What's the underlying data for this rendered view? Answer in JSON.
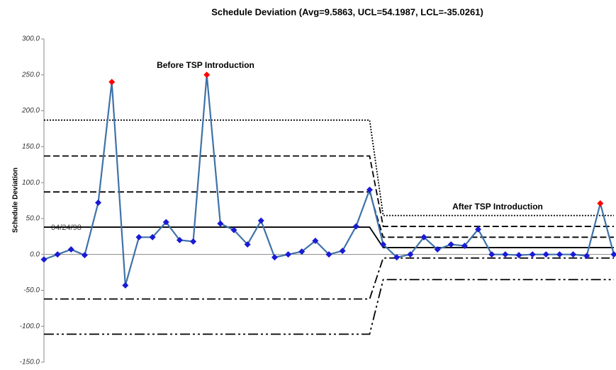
{
  "chart_data": {
    "type": "line",
    "title": "Schedule Deviation (Avg=9.5863, UCL=54.1987, LCL=-35.0261)",
    "y_label": "Schedule Deviation",
    "annotations": [
      "Before TSP Introduction",
      "After TSP Introduction",
      "04/24/98"
    ],
    "categories": [
      null,
      null,
      null,
      null,
      null,
      null,
      null,
      null,
      null,
      null,
      null,
      null,
      null,
      null,
      null,
      null,
      null,
      null,
      null,
      null,
      null,
      null,
      null,
      null,
      null,
      null,
      null,
      null,
      null,
      null,
      null,
      null,
      null,
      null,
      null,
      null,
      null,
      null,
      null,
      null,
      null,
      null,
      null
    ],
    "values": [
      -7,
      0,
      7,
      -1,
      72,
      240,
      -43,
      24,
      24,
      45,
      20,
      18,
      250,
      43,
      34,
      14,
      47,
      -4,
      0,
      4,
      19,
      0,
      5,
      39,
      90,
      14,
      -4,
      0,
      24,
      7,
      14,
      12,
      35,
      0,
      0,
      -1,
      0,
      0,
      0,
      0,
      -2,
      71,
      0
    ],
    "color": "#3f72a8",
    "marker_colors": [
      "#1a1ad6",
      "#1a1ad6",
      "#1a1ad6",
      "#1a1ad6",
      "#1a1ad6",
      "#ff0000",
      "#1a1ad6",
      "#1a1ad6",
      "#1a1ad6",
      "#1a1ad6",
      "#1a1ad6",
      "#1a1ad6",
      "#ff0000",
      "#1a1ad6",
      "#1a1ad6",
      "#1a1ad6",
      "#1a1ad6",
      "#1a1ad6",
      "#1a1ad6",
      "#1a1ad6",
      "#1a1ad6",
      "#1a1ad6",
      "#1a1ad6",
      "#1a1ad6",
      "#1a1ad6",
      "#1a1ad6",
      "#1a1ad6",
      "#1a1ad6",
      "#1a1ad6",
      "#1a1ad6",
      "#1a1ad6",
      "#1a1ad6",
      "#1a1ad6",
      "#1a1ad6",
      "#1a1ad6",
      "#1a1ad6",
      "#1a1ad6",
      "#1a1ad6",
      "#1a1ad6",
      "#1a1ad6",
      "#1a1ad6",
      "#ff0000",
      "#1a1ad6"
    ],
    "limits": [
      {
        "dash": "dotted",
        "values": [
          187,
          187,
          187,
          187,
          187,
          187,
          187,
          187,
          187,
          187,
          187,
          187,
          187,
          187,
          187,
          187,
          187,
          187,
          187,
          187,
          187,
          187,
          187,
          187,
          187,
          54.1987,
          54.1987,
          54.1987,
          54.1987,
          54.1987,
          54.1987,
          54.1987,
          54.1987,
          54.1987,
          54.1987,
          54.1987,
          54.1987,
          54.1987,
          54.1987,
          54.1987,
          54.1987,
          54.1987,
          54.1987
        ]
      },
      {
        "dash": "dashed",
        "values": [
          137,
          137,
          137,
          137,
          137,
          137,
          137,
          137,
          137,
          137,
          137,
          137,
          137,
          137,
          137,
          137,
          137,
          137,
          137,
          137,
          137,
          137,
          137,
          137,
          137,
          39,
          39,
          39,
          39,
          39,
          39,
          39,
          39,
          39,
          39,
          39,
          39,
          39,
          39,
          39,
          39,
          39,
          39
        ]
      },
      {
        "dash": "dashed",
        "values": [
          87,
          87,
          87,
          87,
          87,
          87,
          87,
          87,
          87,
          87,
          87,
          87,
          87,
          87,
          87,
          87,
          87,
          87,
          87,
          87,
          87,
          87,
          87,
          87,
          87,
          24,
          24,
          24,
          24,
          24,
          24,
          24,
          24,
          24,
          24,
          24,
          24,
          24,
          24,
          24,
          24,
          24,
          24
        ]
      },
      {
        "dash": "solid",
        "values": [
          38,
          38,
          38,
          38,
          38,
          38,
          38,
          38,
          38,
          38,
          38,
          38,
          38,
          38,
          38,
          38,
          38,
          38,
          38,
          38,
          38,
          38,
          38,
          38,
          38,
          9.5863,
          9.5863,
          9.5863,
          9.5863,
          9.5863,
          9.5863,
          9.5863,
          9.5863,
          9.5863,
          9.5863,
          9.5863,
          9.5863,
          9.5863,
          9.5863,
          9.5863,
          9.5863,
          9.5863,
          9.5863
        ]
      },
      {
        "dash": "dashdot",
        "values": [
          -62,
          -62,
          -62,
          -62,
          -62,
          -62,
          -62,
          -62,
          -62,
          -62,
          -62,
          -62,
          -62,
          -62,
          -62,
          -62,
          -62,
          -62,
          -62,
          -62,
          -62,
          -62,
          -62,
          -62,
          -62,
          -5,
          -5,
          -5,
          -5,
          -5,
          -5,
          -5,
          -5,
          -5,
          -5,
          -5,
          -5,
          -5,
          -5,
          -5,
          -5,
          -5,
          -5
        ]
      },
      {
        "dash": "dashdotdot",
        "values": [
          -111,
          -111,
          -111,
          -111,
          -111,
          -111,
          -111,
          -111,
          -111,
          -111,
          -111,
          -111,
          -111,
          -111,
          -111,
          -111,
          -111,
          -111,
          -111,
          -111,
          -111,
          -111,
          -111,
          -111,
          -111,
          -35.0261,
          -35.0261,
          -35.0261,
          -35.0261,
          -35.0261,
          -35.0261,
          -35.0261,
          -35.0261,
          -35.0261,
          -35.0261,
          -35.0261,
          -35.0261,
          -35.0261,
          -35.0261,
          -35.0261,
          -35.0261,
          -35.0261,
          -35.0261
        ]
      }
    ],
    "ylim": [
      -150,
      300
    ],
    "yticks": [
      {
        "value": -150,
        "label": "-150.0"
      },
      {
        "value": -100,
        "label": "-100.0"
      },
      {
        "value": -50,
        "label": "-50.0"
      },
      {
        "value": 0,
        "label": "0.0"
      },
      {
        "value": 50,
        "label": "50.0"
      },
      {
        "value": 100,
        "label": "100.0"
      },
      {
        "value": 150,
        "label": "150.0"
      },
      {
        "value": 200,
        "label": "200.0"
      },
      {
        "value": 250,
        "label": "250.0"
      },
      {
        "value": 300,
        "label": "300.0"
      }
    ],
    "grid": false
  }
}
